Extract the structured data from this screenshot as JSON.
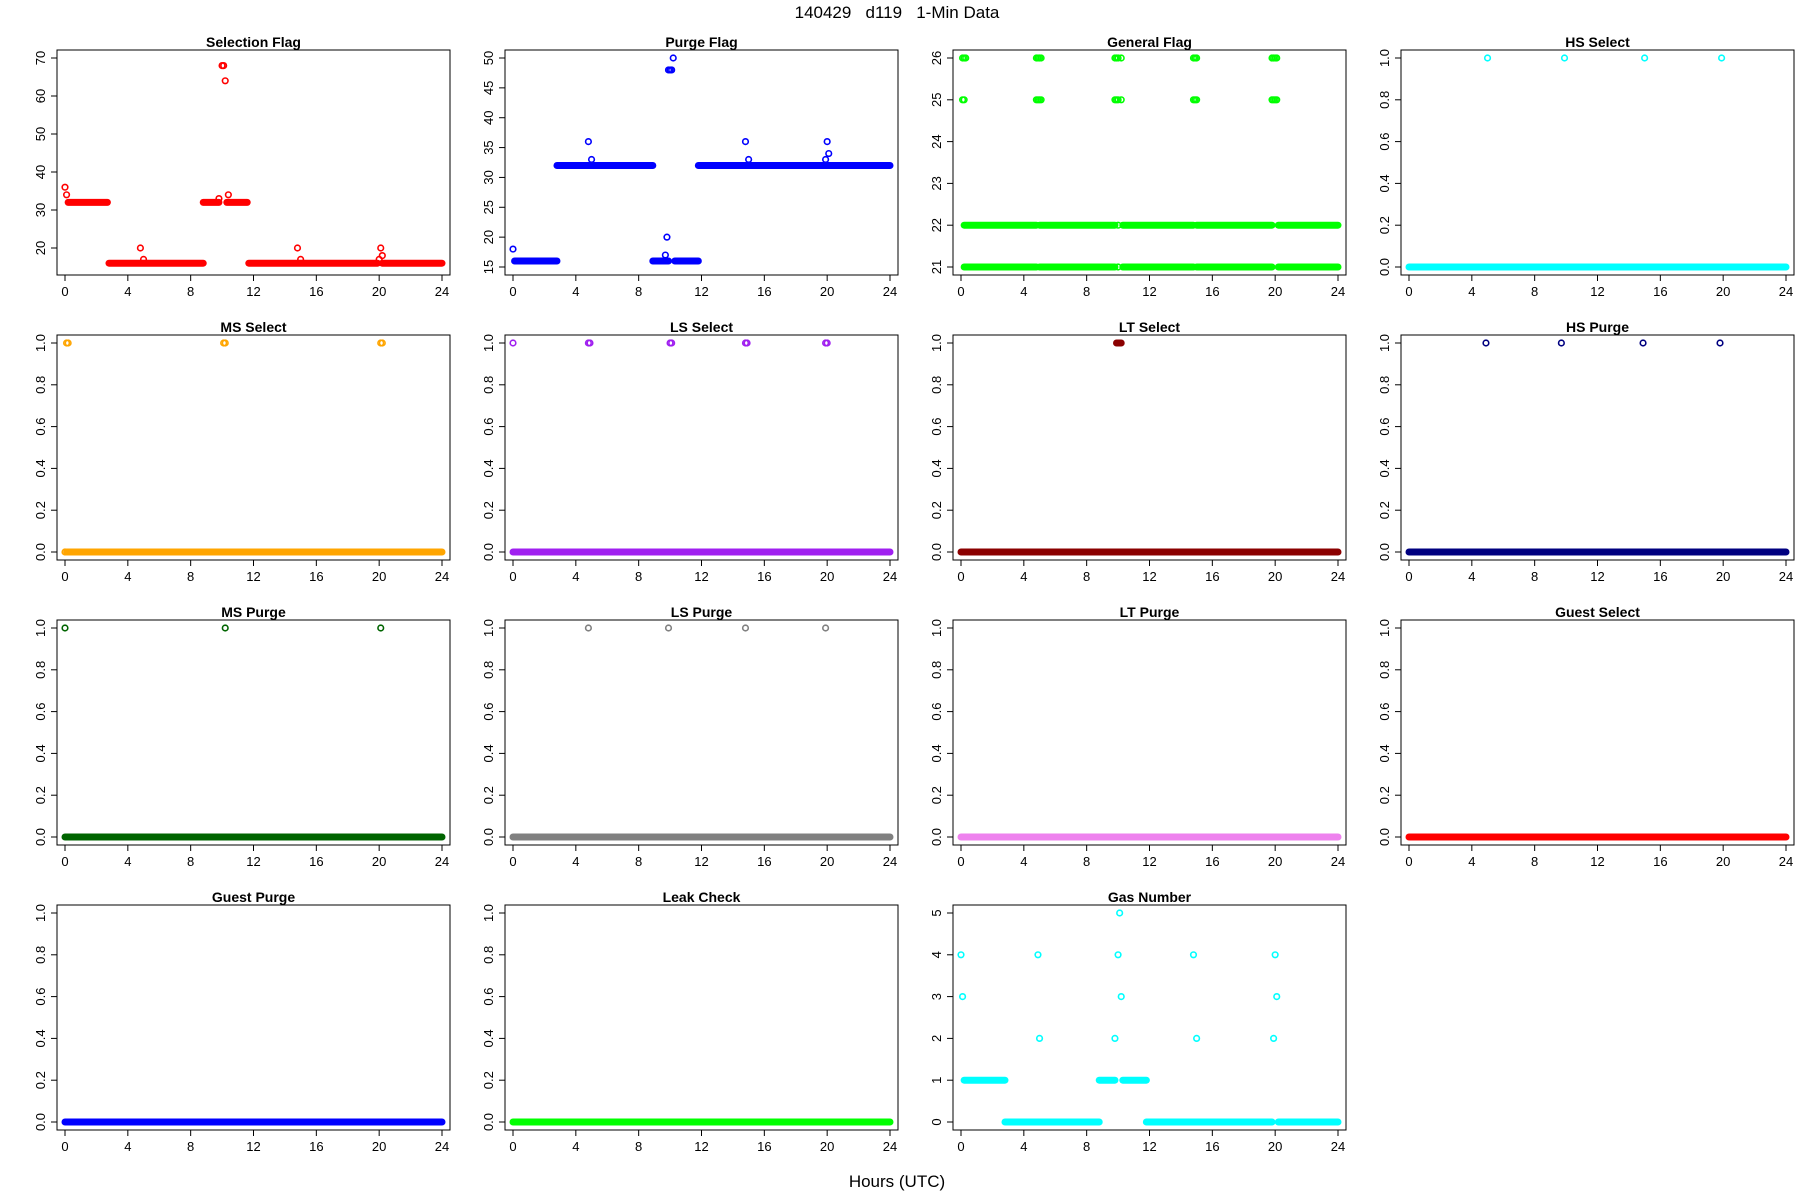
{
  "figure": {
    "title": "140429   d119   1-Min Data",
    "xlabel": "Hours (UTC)"
  },
  "chart_data": [
    {
      "type": "scatter",
      "title": "Selection Flag",
      "color": "#ff0000",
      "xlim": [
        0,
        24
      ],
      "ylim": [
        15,
        70
      ],
      "xticks": [
        0,
        4,
        8,
        12,
        16,
        20,
        24
      ],
      "yticks": [
        20,
        30,
        40,
        50,
        60,
        70
      ],
      "runs": [
        [
          0.2,
          2.7,
          32
        ],
        [
          2.8,
          8.8,
          16
        ],
        [
          8.8,
          9.8,
          32
        ],
        [
          10.3,
          11.6,
          32
        ],
        [
          11.7,
          19.9,
          16
        ],
        [
          20.2,
          24,
          16
        ]
      ],
      "points": [
        [
          0,
          36
        ],
        [
          0.1,
          34
        ],
        [
          4.8,
          20
        ],
        [
          5.0,
          17
        ],
        [
          9.8,
          33
        ],
        [
          10.0,
          68
        ],
        [
          10.1,
          68
        ],
        [
          10.2,
          64
        ],
        [
          10.4,
          34
        ],
        [
          14.8,
          20
        ],
        [
          15.0,
          17
        ],
        [
          20.0,
          17
        ],
        [
          20.1,
          20
        ],
        [
          20.2,
          18
        ]
      ]
    },
    {
      "type": "scatter",
      "title": "Purge Flag",
      "color": "#0000ff",
      "xlim": [
        0,
        24
      ],
      "ylim": [
        15,
        50
      ],
      "xticks": [
        0,
        4,
        8,
        12,
        16,
        20,
        24
      ],
      "yticks": [
        15,
        20,
        25,
        30,
        35,
        40,
        45,
        50
      ],
      "runs": [
        [
          0.1,
          2.8,
          16
        ],
        [
          2.8,
          8.9,
          32
        ],
        [
          8.9,
          9.9,
          16
        ],
        [
          10.3,
          11.8,
          16
        ],
        [
          11.8,
          24,
          32
        ]
      ],
      "points": [
        [
          0,
          18
        ],
        [
          4.8,
          36
        ],
        [
          5.0,
          33
        ],
        [
          9.7,
          17
        ],
        [
          9.8,
          20
        ],
        [
          9.9,
          48
        ],
        [
          10.0,
          48
        ],
        [
          10.1,
          48
        ],
        [
          10.2,
          50
        ],
        [
          14.8,
          36
        ],
        [
          15.0,
          33
        ],
        [
          19.9,
          33
        ],
        [
          20.0,
          36
        ],
        [
          20.1,
          34
        ]
      ]
    },
    {
      "type": "scatter",
      "title": "General Flag",
      "color": "#00ff00",
      "xlim": [
        0,
        24
      ],
      "ylim": [
        21,
        26
      ],
      "xticks": [
        0,
        4,
        8,
        12,
        16,
        20,
        24
      ],
      "yticks": [
        21,
        22,
        23,
        24,
        25,
        26
      ],
      "runs": [
        [
          0.2,
          4.8,
          22
        ],
        [
          5.0,
          9.8,
          22
        ],
        [
          10.3,
          14.8,
          22
        ],
        [
          15.0,
          19.8,
          22
        ],
        [
          20.2,
          24,
          22
        ],
        [
          0.2,
          4.8,
          21
        ],
        [
          5.0,
          9.8,
          21
        ],
        [
          10.3,
          14.8,
          21
        ],
        [
          15.0,
          19.8,
          21
        ],
        [
          20.2,
          24,
          21
        ]
      ],
      "points": [
        [
          0.1,
          26
        ],
        [
          0.2,
          26
        ],
        [
          0.3,
          26
        ],
        [
          0.1,
          25
        ],
        [
          0.2,
          25
        ],
        [
          4.8,
          26
        ],
        [
          4.9,
          26
        ],
        [
          5.0,
          26
        ],
        [
          5.1,
          26
        ],
        [
          4.8,
          25
        ],
        [
          4.9,
          25
        ],
        [
          5.0,
          25
        ],
        [
          5.1,
          25
        ],
        [
          9.8,
          26
        ],
        [
          9.9,
          26
        ],
        [
          10.0,
          26
        ],
        [
          10.2,
          26
        ],
        [
          9.8,
          25
        ],
        [
          9.9,
          25
        ],
        [
          10.0,
          25
        ],
        [
          10.2,
          25
        ],
        [
          14.8,
          26
        ],
        [
          14.9,
          26
        ],
        [
          15.0,
          26
        ],
        [
          14.8,
          25
        ],
        [
          14.9,
          25
        ],
        [
          15.0,
          25
        ],
        [
          19.8,
          26
        ],
        [
          19.9,
          26
        ],
        [
          20.0,
          26
        ],
        [
          20.1,
          26
        ],
        [
          19.8,
          25
        ],
        [
          19.9,
          25
        ],
        [
          20.0,
          25
        ],
        [
          20.1,
          25
        ],
        [
          10.0,
          22
        ],
        [
          10.0,
          21
        ]
      ]
    },
    {
      "type": "scatter",
      "title": "HS Select",
      "color": "#00ffff",
      "xlim": [
        0,
        24
      ],
      "ylim": [
        0,
        1
      ],
      "xticks": [
        0,
        4,
        8,
        12,
        16,
        20,
        24
      ],
      "yticks": [
        "0.0",
        "0.2",
        "0.4",
        "0.6",
        "0.8",
        "1.0"
      ],
      "runs": [
        [
          0,
          24,
          0
        ]
      ],
      "points": [
        [
          5.0,
          1
        ],
        [
          9.9,
          1
        ],
        [
          15.0,
          1
        ],
        [
          19.9,
          1
        ]
      ]
    },
    {
      "type": "scatter",
      "title": "MS Select",
      "color": "#ffa500",
      "xlim": [
        0,
        24
      ],
      "ylim": [
        0,
        1
      ],
      "xticks": [
        0,
        4,
        8,
        12,
        16,
        20,
        24
      ],
      "yticks": [
        "0.0",
        "0.2",
        "0.4",
        "0.6",
        "0.8",
        "1.0"
      ],
      "runs": [
        [
          0.1,
          24,
          0
        ]
      ],
      "points": [
        [
          0,
          0
        ],
        [
          0.1,
          1
        ],
        [
          0.2,
          1
        ],
        [
          10.1,
          1
        ],
        [
          10.2,
          1
        ],
        [
          20.1,
          1
        ],
        [
          20.2,
          1
        ]
      ]
    },
    {
      "type": "scatter",
      "title": "LS Select",
      "color": "#a020f0",
      "xlim": [
        0,
        24
      ],
      "ylim": [
        0,
        1
      ],
      "xticks": [
        0,
        4,
        8,
        12,
        16,
        20,
        24
      ],
      "yticks": [
        "0.0",
        "0.2",
        "0.4",
        "0.6",
        "0.8",
        "1.0"
      ],
      "runs": [
        [
          0,
          24,
          0
        ]
      ],
      "points": [
        [
          0,
          1
        ],
        [
          4.8,
          1
        ],
        [
          4.9,
          1
        ],
        [
          10.0,
          1
        ],
        [
          10.1,
          1
        ],
        [
          14.8,
          1
        ],
        [
          14.9,
          1
        ],
        [
          19.9,
          1
        ],
        [
          20.0,
          1
        ]
      ]
    },
    {
      "type": "scatter",
      "title": "LT Select",
      "color": "#8b0000",
      "xlim": [
        0,
        24
      ],
      "ylim": [
        0,
        1
      ],
      "xticks": [
        0,
        4,
        8,
        12,
        16,
        20,
        24
      ],
      "yticks": [
        "0.0",
        "0.2",
        "0.4",
        "0.6",
        "0.8",
        "1.0"
      ],
      "runs": [
        [
          0,
          24,
          0
        ],
        [
          9.9,
          10.2,
          1
        ]
      ],
      "points": []
    },
    {
      "type": "scatter",
      "title": "HS Purge",
      "color": "#000080",
      "xlim": [
        0,
        24
      ],
      "ylim": [
        0,
        1
      ],
      "xticks": [
        0,
        4,
        8,
        12,
        16,
        20,
        24
      ],
      "yticks": [
        "0.0",
        "0.2",
        "0.4",
        "0.6",
        "0.8",
        "1.0"
      ],
      "runs": [
        [
          0,
          24,
          0
        ]
      ],
      "points": [
        [
          4.9,
          1
        ],
        [
          9.7,
          1
        ],
        [
          14.9,
          1
        ],
        [
          19.8,
          1
        ]
      ]
    },
    {
      "type": "scatter",
      "title": "MS Purge",
      "color": "#006400",
      "xlim": [
        0,
        24
      ],
      "ylim": [
        0,
        1
      ],
      "xticks": [
        0,
        4,
        8,
        12,
        16,
        20,
        24
      ],
      "yticks": [
        "0.0",
        "0.2",
        "0.4",
        "0.6",
        "0.8",
        "1.0"
      ],
      "runs": [
        [
          0,
          24,
          0
        ]
      ],
      "points": [
        [
          0,
          1
        ],
        [
          10.2,
          1
        ],
        [
          20.1,
          1
        ]
      ]
    },
    {
      "type": "scatter",
      "title": "LS Purge",
      "color": "#808080",
      "xlim": [
        0,
        24
      ],
      "ylim": [
        0,
        1
      ],
      "xticks": [
        0,
        4,
        8,
        12,
        16,
        20,
        24
      ],
      "yticks": [
        "0.0",
        "0.2",
        "0.4",
        "0.6",
        "0.8",
        "1.0"
      ],
      "runs": [
        [
          0,
          24,
          0
        ]
      ],
      "points": [
        [
          4.8,
          1
        ],
        [
          9.9,
          1
        ],
        [
          14.8,
          1
        ],
        [
          19.9,
          1
        ]
      ]
    },
    {
      "type": "scatter",
      "title": "LT Purge",
      "color": "#ee82ee",
      "xlim": [
        0,
        24
      ],
      "ylim": [
        0,
        1
      ],
      "xticks": [
        0,
        4,
        8,
        12,
        16,
        20,
        24
      ],
      "yticks": [
        "0.0",
        "0.2",
        "0.4",
        "0.6",
        "0.8",
        "1.0"
      ],
      "runs": [
        [
          0,
          24,
          0
        ]
      ],
      "points": []
    },
    {
      "type": "scatter",
      "title": "Guest Select",
      "color": "#ff0000",
      "xlim": [
        0,
        24
      ],
      "ylim": [
        0,
        1
      ],
      "xticks": [
        0,
        4,
        8,
        12,
        16,
        20,
        24
      ],
      "yticks": [
        "0.0",
        "0.2",
        "0.4",
        "0.6",
        "0.8",
        "1.0"
      ],
      "runs": [
        [
          0,
          24,
          0
        ]
      ],
      "points": []
    },
    {
      "type": "scatter",
      "title": "Guest Purge",
      "color": "#0000ff",
      "xlim": [
        0,
        24
      ],
      "ylim": [
        0,
        1
      ],
      "xticks": [
        0,
        4,
        8,
        12,
        16,
        20,
        24
      ],
      "yticks": [
        "0.0",
        "0.2",
        "0.4",
        "0.6",
        "0.8",
        "1.0"
      ],
      "runs": [
        [
          0,
          24,
          0
        ]
      ],
      "points": []
    },
    {
      "type": "scatter",
      "title": "Leak Check",
      "color": "#00ff00",
      "xlim": [
        0,
        24
      ],
      "ylim": [
        0,
        1
      ],
      "xticks": [
        0,
        4,
        8,
        12,
        16,
        20,
        24
      ],
      "yticks": [
        "0.0",
        "0.2",
        "0.4",
        "0.6",
        "0.8",
        "1.0"
      ],
      "runs": [
        [
          0,
          24,
          0
        ]
      ],
      "points": []
    },
    {
      "type": "scatter",
      "title": "Gas Number",
      "color": "#00ffff",
      "xlim": [
        0,
        24
      ],
      "ylim": [
        0,
        5
      ],
      "xticks": [
        0,
        4,
        8,
        12,
        16,
        20,
        24
      ],
      "yticks": [
        0,
        1,
        2,
        3,
        4,
        5
      ],
      "runs": [
        [
          0.2,
          2.8,
          1
        ],
        [
          2.8,
          8.8,
          0
        ],
        [
          8.8,
          9.8,
          1
        ],
        [
          10.3,
          11.8,
          1
        ],
        [
          11.8,
          19.8,
          0
        ],
        [
          20.2,
          24,
          0
        ]
      ],
      "points": [
        [
          0,
          4
        ],
        [
          0.1,
          3
        ],
        [
          4.9,
          4
        ],
        [
          5.0,
          2
        ],
        [
          9.8,
          2
        ],
        [
          10.0,
          4
        ],
        [
          10.1,
          5
        ],
        [
          10.2,
          3
        ],
        [
          14.8,
          4
        ],
        [
          15.0,
          2
        ],
        [
          19.9,
          2
        ],
        [
          20.0,
          4
        ],
        [
          20.1,
          3
        ]
      ]
    }
  ]
}
